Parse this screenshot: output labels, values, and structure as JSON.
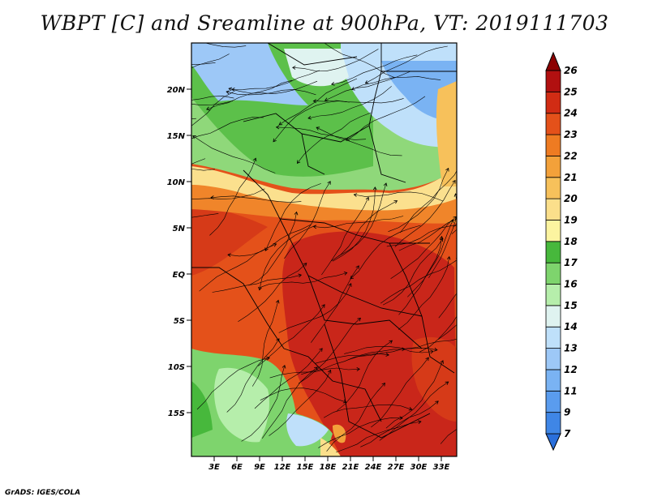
{
  "title": "WBPT [C] and Sreamline at 900hPa, VT: 2019111703",
  "credit": "GrADS: IGES/COLA",
  "map": {
    "lat_labels": [
      "20N",
      "15N",
      "10N",
      "5N",
      "EQ",
      "5S",
      "10S",
      "15S"
    ],
    "lon_labels": [
      "3E",
      "6E",
      "9E",
      "12E",
      "15E",
      "18E",
      "21E",
      "24E",
      "27E",
      "30E",
      "33E"
    ]
  },
  "colorbar": {
    "levels": [
      "7",
      "9",
      "11",
      "12",
      "13",
      "14",
      "15",
      "16",
      "17",
      "18",
      "19",
      "20",
      "21",
      "22",
      "23",
      "24",
      "25",
      "26"
    ],
    "colors": [
      "#2a6fdb",
      "#3f86e6",
      "#5a9cee",
      "#7ab3f3",
      "#9dc8f7",
      "#bfe0fa",
      "#dff3f0",
      "#b6eeab",
      "#7ed46d",
      "#47b83c",
      "#fcf4a0",
      "#fbdf8b",
      "#f7c15b",
      "#f3a13a",
      "#ee7b22",
      "#e4511a",
      "#d12c14",
      "#b11010",
      "#8c0000"
    ]
  }
}
